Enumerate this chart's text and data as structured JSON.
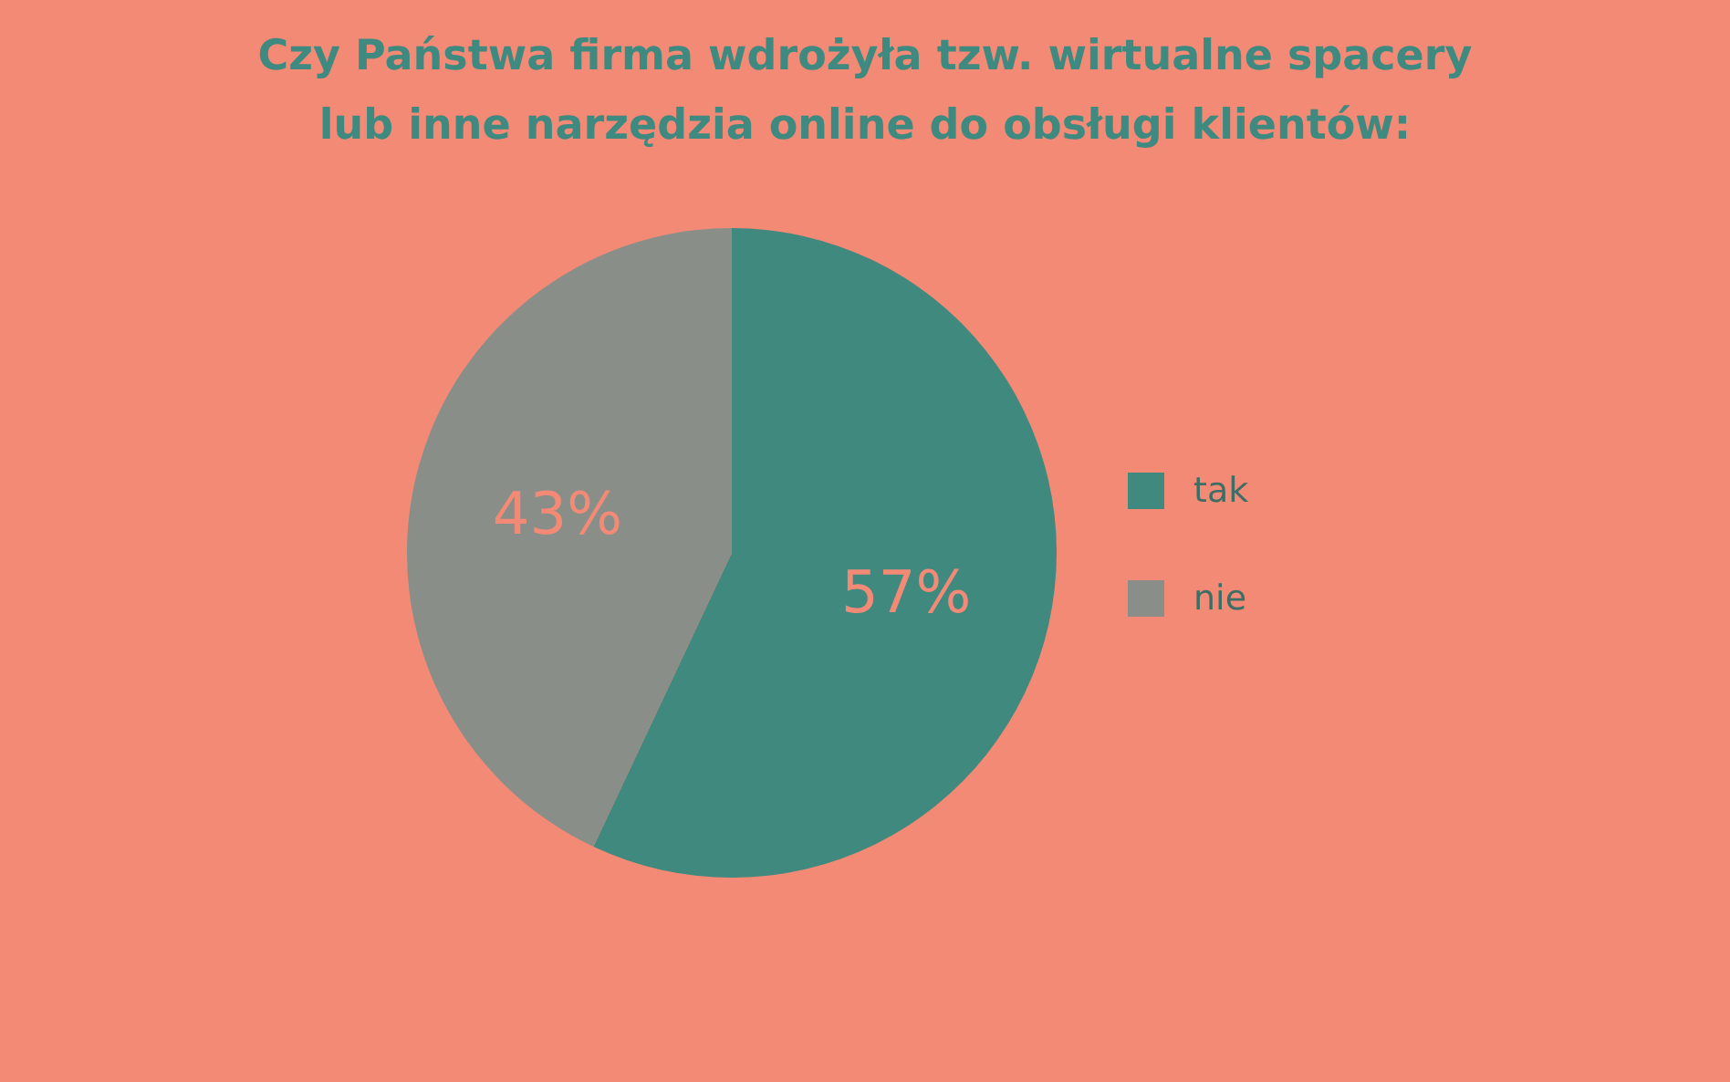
{
  "chart_data": {
    "type": "pie",
    "title": "Czy Państwa firma wdrożyła tzw. wirtualne spacery\nlub inne narzędzia online do obsługi klientów:",
    "categories": [
      "tak",
      "nie"
    ],
    "values": [
      57,
      43
    ],
    "colors": [
      "#40897f",
      "#8a8e88"
    ],
    "value_labels": [
      "57%",
      "43%"
    ],
    "legend": "right"
  }
}
